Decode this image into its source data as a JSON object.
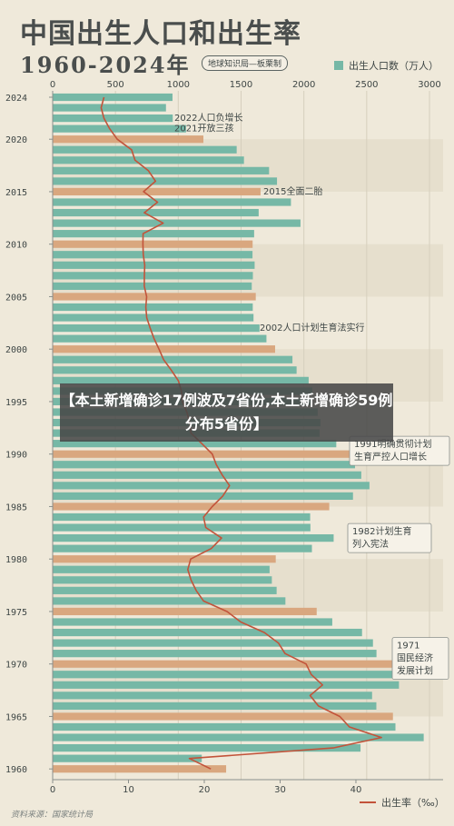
{
  "header": {
    "title": "中国出生人口和出生率",
    "subtitle": "1960-2024年",
    "badge": "地球知识局—板栗制"
  },
  "overlay_headline": "【本土新增确诊17例波及7省份,本土新增确诊59例 分布5省份】",
  "source": "资料来源：国家统计局",
  "colors": {
    "bar": "#76b8a6",
    "bar_highlight": "#d9a77f",
    "line": "#c2533a",
    "band": "#e6dfcd",
    "text": "#3e4645"
  },
  "chart_data": {
    "type": "bar",
    "orientation": "horizontal",
    "legend_position": "top-right and bottom-right",
    "top_axis": {
      "ticks": [
        "0",
        "500",
        "1000",
        "1500",
        "2000",
        "2500",
        "3000"
      ],
      "range": [
        0,
        3000
      ]
    },
    "bottom_axis": {
      "ticks": [
        "0",
        "10",
        "20",
        "30",
        "40"
      ],
      "range": [
        0,
        51.5
      ]
    },
    "year_labels": [
      "2024",
      "2020",
      "2015",
      "2010",
      "2005",
      "2000",
      "1995",
      "1990",
      "1985",
      "1980",
      "1975",
      "1970",
      "1965",
      "1960"
    ],
    "years": [
      2024,
      2023,
      2022,
      2021,
      2020,
      2019,
      2018,
      2017,
      2016,
      2015,
      2014,
      2013,
      2012,
      2011,
      2010,
      2009,
      2008,
      2007,
      2006,
      2005,
      2004,
      2003,
      2002,
      2001,
      2000,
      1999,
      1998,
      1997,
      1996,
      1995,
      1994,
      1993,
      1992,
      1991,
      1990,
      1989,
      1988,
      1987,
      1986,
      1985,
      1984,
      1983,
      1982,
      1981,
      1980,
      1979,
      1978,
      1977,
      1976,
      1975,
      1974,
      1973,
      1972,
      1971,
      1970,
      1969,
      1968,
      1967,
      1966,
      1965,
      1964,
      1963,
      1962,
      1961,
      1960
    ],
    "series": [
      {
        "name": "出生人口数（万人）",
        "values": [
          954,
          902,
          956,
          1062,
          1200,
          1465,
          1523,
          1723,
          1786,
          1655,
          1897,
          1640,
          1973,
          1604,
          1592,
          1591,
          1608,
          1594,
          1585,
          1617,
          1593,
          1599,
          1647,
          1702,
          1771,
          1909,
          1942,
          2038,
          2067,
          2063,
          2110,
          2132,
          2125,
          2258,
          2391,
          2407,
          2457,
          2522,
          2391,
          2202,
          2050,
          2052,
          2237,
          2064,
          1776,
          1727,
          1745,
          1783,
          1853,
          2102,
          2226,
          2463,
          2550,
          2578,
          2736,
          2715,
          2757,
          2543,
          2577,
          2709,
          2729,
          2954,
          2451,
          1187,
          1381
        ],
        "highlight_years": [
          2020,
          2015,
          2010,
          2005,
          2000,
          1990,
          1985,
          1980,
          1975,
          1970,
          1965,
          1960
        ]
      },
      {
        "name": "出生率（‰）",
        "values": [
          6.77,
          6.39,
          6.77,
          7.52,
          8.52,
          10.41,
          10.86,
          12.64,
          13.57,
          11.99,
          13.83,
          12.08,
          14.57,
          11.93,
          11.9,
          11.95,
          12.14,
          12.1,
          12.09,
          12.4,
          12.29,
          12.41,
          12.86,
          13.38,
          14.03,
          14.64,
          15.64,
          16.57,
          16.98,
          17.12,
          17.7,
          18.09,
          18.24,
          19.68,
          21.06,
          21.58,
          22.37,
          23.33,
          22.43,
          21.04,
          19.9,
          20.19,
          22.28,
          20.91,
          18.21,
          17.82,
          18.25,
          18.93,
          19.91,
          23.01,
          24.82,
          27.93,
          29.77,
          30.65,
          33.43,
          34.11,
          35.59,
          33.96,
          35.05,
          37.88,
          39.14,
          43.37,
          37.01,
          18.02,
          20.86
        ]
      }
    ],
    "annotations": [
      {
        "text": "2022人口负增长",
        "year": 2022
      },
      {
        "text": "2021开放三孩",
        "year": 2021
      },
      {
        "text": "2015全面二胎",
        "year": 2015
      },
      {
        "text": "2002人口计划生育法实行",
        "year": 2002
      },
      {
        "text": [
          "1991明确贯彻计划",
          "生育严控人口增长"
        ],
        "year": 1990
      },
      {
        "text": [
          "1982计划生育",
          "列入宪法"
        ],
        "year": 1982
      },
      {
        "text": [
          "1971",
          "国民经济",
          "发展计划"
        ],
        "year": 1971
      }
    ]
  }
}
